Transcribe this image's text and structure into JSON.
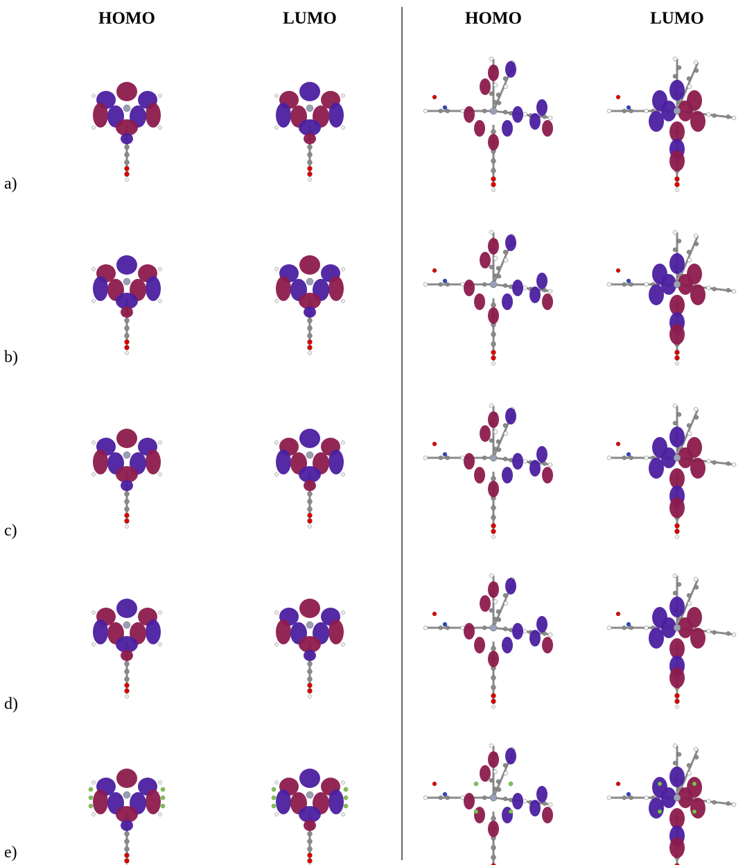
{
  "headers": [
    "HOMO",
    "LUMO",
    "HOMO",
    "LUMO"
  ],
  "rows": [
    "a)",
    "b)",
    "c)",
    "d)",
    "e)"
  ]
}
